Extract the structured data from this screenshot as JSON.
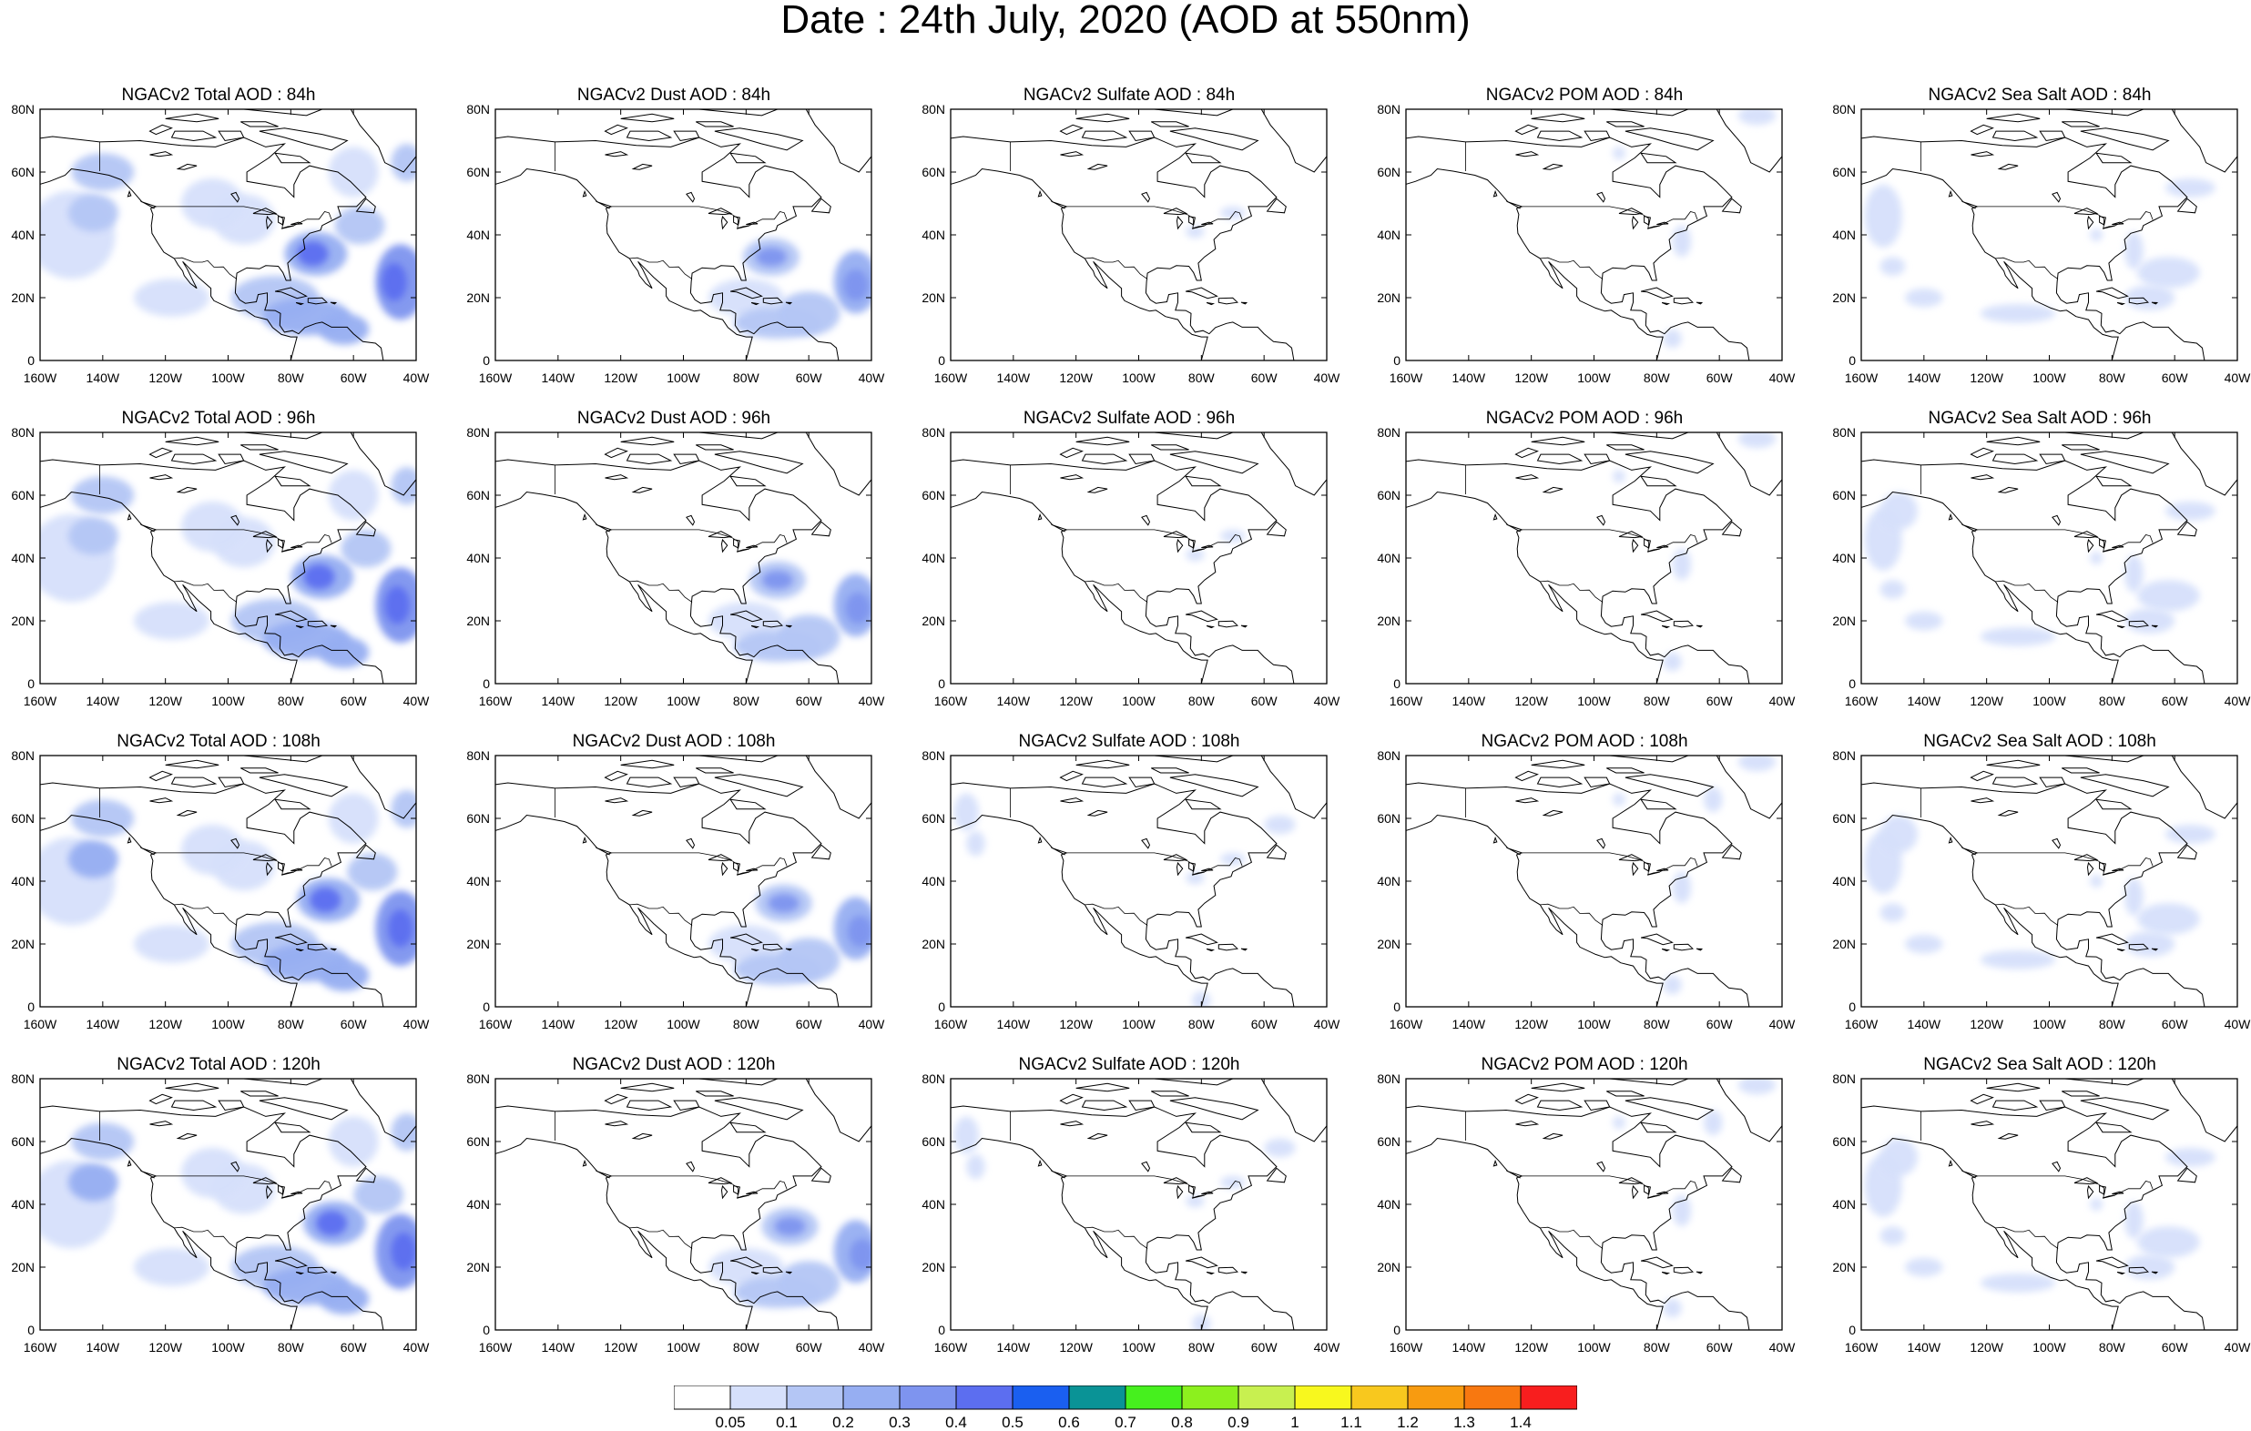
{
  "title": "Date : 24th July, 2020 (AOD at 550nm)",
  "axes": {
    "lon_labels": [
      "160W",
      "140W",
      "120W",
      "100W",
      "80W",
      "60W",
      "40W"
    ],
    "lat_labels": [
      "0",
      "20N",
      "40N",
      "60N",
      "80N"
    ]
  },
  "panels": [
    {
      "title": "NGACv2 Total AOD : 84h",
      "species": "total",
      "hour": 84
    },
    {
      "title": "NGACv2 Dust AOD : 84h",
      "species": "dust",
      "hour": 84
    },
    {
      "title": "NGACv2 Sulfate AOD : 84h",
      "species": "sulfate",
      "hour": 84
    },
    {
      "title": "NGACv2 POM AOD : 84h",
      "species": "pom",
      "hour": 84
    },
    {
      "title": "NGACv2 Sea Salt AOD : 84h",
      "species": "seasalt",
      "hour": 84
    },
    {
      "title": "NGACv2 Total AOD : 96h",
      "species": "total",
      "hour": 96
    },
    {
      "title": "NGACv2 Dust AOD : 96h",
      "species": "dust",
      "hour": 96
    },
    {
      "title": "NGACv2 Sulfate AOD : 96h",
      "species": "sulfate",
      "hour": 96
    },
    {
      "title": "NGACv2 POM AOD : 96h",
      "species": "pom",
      "hour": 96
    },
    {
      "title": "NGACv2 Sea Salt AOD : 96h",
      "species": "seasalt",
      "hour": 96
    },
    {
      "title": "NGACv2 Total AOD : 108h",
      "species": "total",
      "hour": 108
    },
    {
      "title": "NGACv2 Dust AOD : 108h",
      "species": "dust",
      "hour": 108
    },
    {
      "title": "NGACv2 Sulfate AOD : 108h",
      "species": "sulfate",
      "hour": 108
    },
    {
      "title": "NGACv2 POM AOD : 108h",
      "species": "pom",
      "hour": 108
    },
    {
      "title": "NGACv2 Sea Salt AOD : 108h",
      "species": "seasalt",
      "hour": 108
    },
    {
      "title": "NGACv2 Total AOD : 120h",
      "species": "total",
      "hour": 120
    },
    {
      "title": "NGACv2 Dust AOD : 120h",
      "species": "dust",
      "hour": 120
    },
    {
      "title": "NGACv2 Sulfate AOD : 120h",
      "species": "sulfate",
      "hour": 120
    },
    {
      "title": "NGACv2 POM AOD : 120h",
      "species": "pom",
      "hour": 120
    },
    {
      "title": "NGACv2 Sea Salt  AOD : 120h",
      "species": "seasalt",
      "hour": 120
    }
  ],
  "colorbar": {
    "labels": [
      "0.05",
      "0.1",
      "0.2",
      "0.3",
      "0.4",
      "0.5",
      "0.6",
      "0.7",
      "0.8",
      "0.9",
      "1",
      "1.1",
      "1.2",
      "1.3",
      "1.4"
    ],
    "colors": [
      "#ffffff",
      "#d6e0fb",
      "#b4c6f5",
      "#96aef2",
      "#7e94ef",
      "#5c6ef0",
      "#1a5ff0",
      "#0a9396",
      "#46f01e",
      "#8cf01e",
      "#c8f050",
      "#f8f81e",
      "#f8c81e",
      "#f89b10",
      "#f87810",
      "#f81e1e"
    ]
  }
}
